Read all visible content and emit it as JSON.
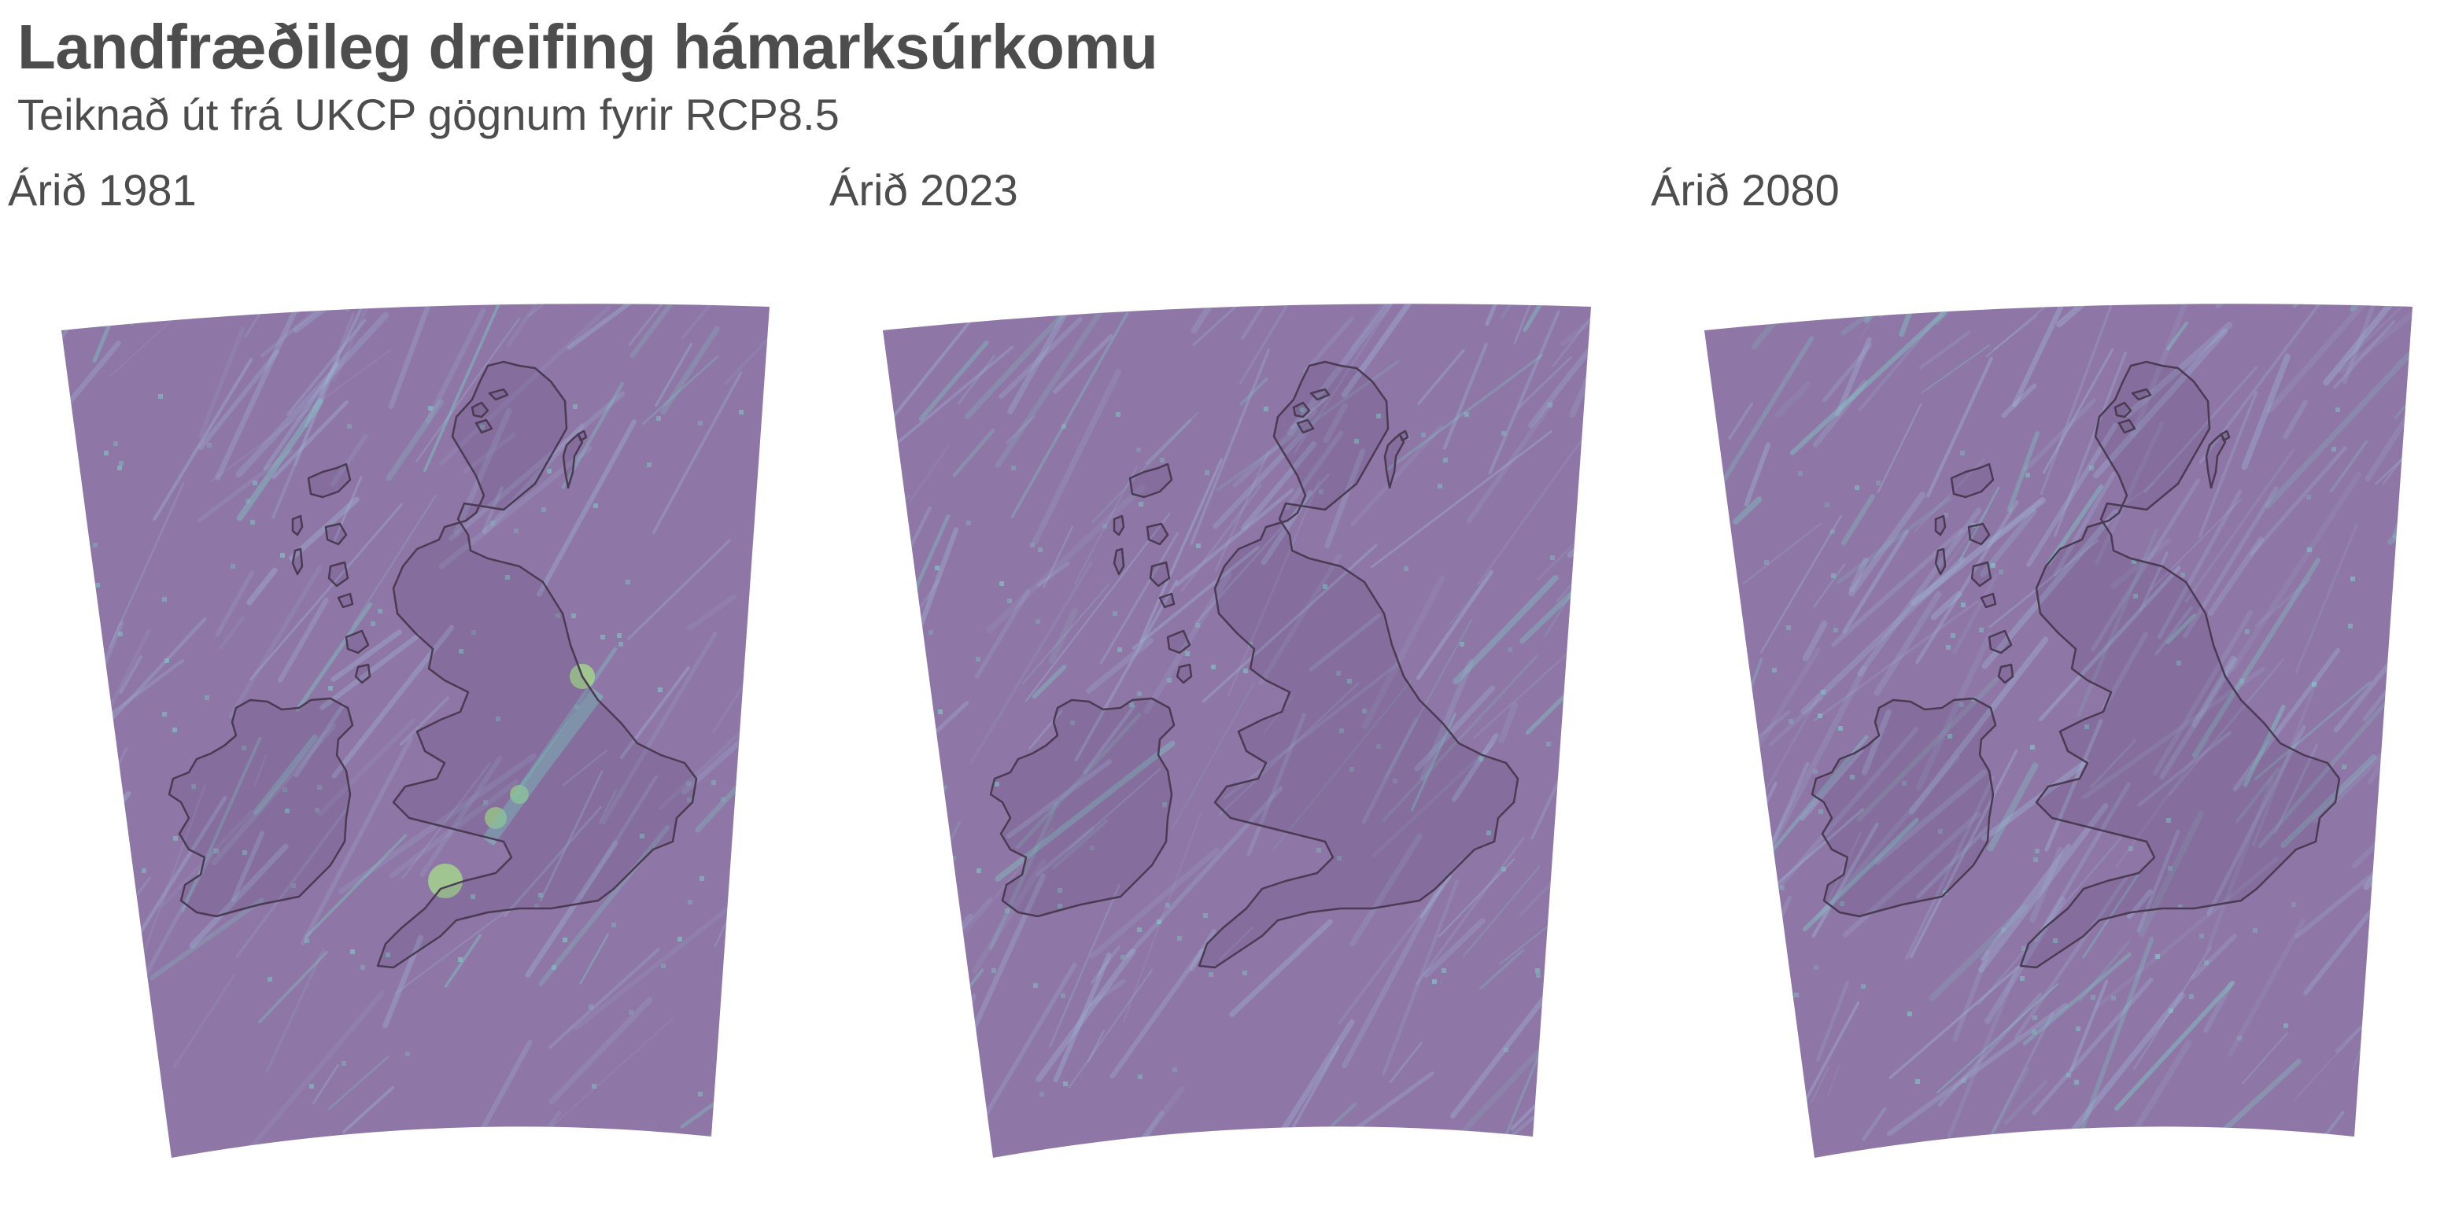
{
  "title": "Landfræðileg dreifing hámarksúrkomu",
  "subtitle": "Teiknað út frá UKCP gögnum fyrir RCP8.5",
  "panels": [
    {
      "label": "Árið 1981"
    },
    {
      "label": "Árið 2023"
    },
    {
      "label": "Árið 2080"
    }
  ],
  "colors": {
    "base_fill": "#8e76a6",
    "streak_light": "#9fb6d8",
    "streak_teal": "#7fd3c6",
    "hotspot": "#a6e08a",
    "coastline": "#4a3b52",
    "text": "#4d4d4d"
  },
  "colormap": "viridis (translucent)"
}
